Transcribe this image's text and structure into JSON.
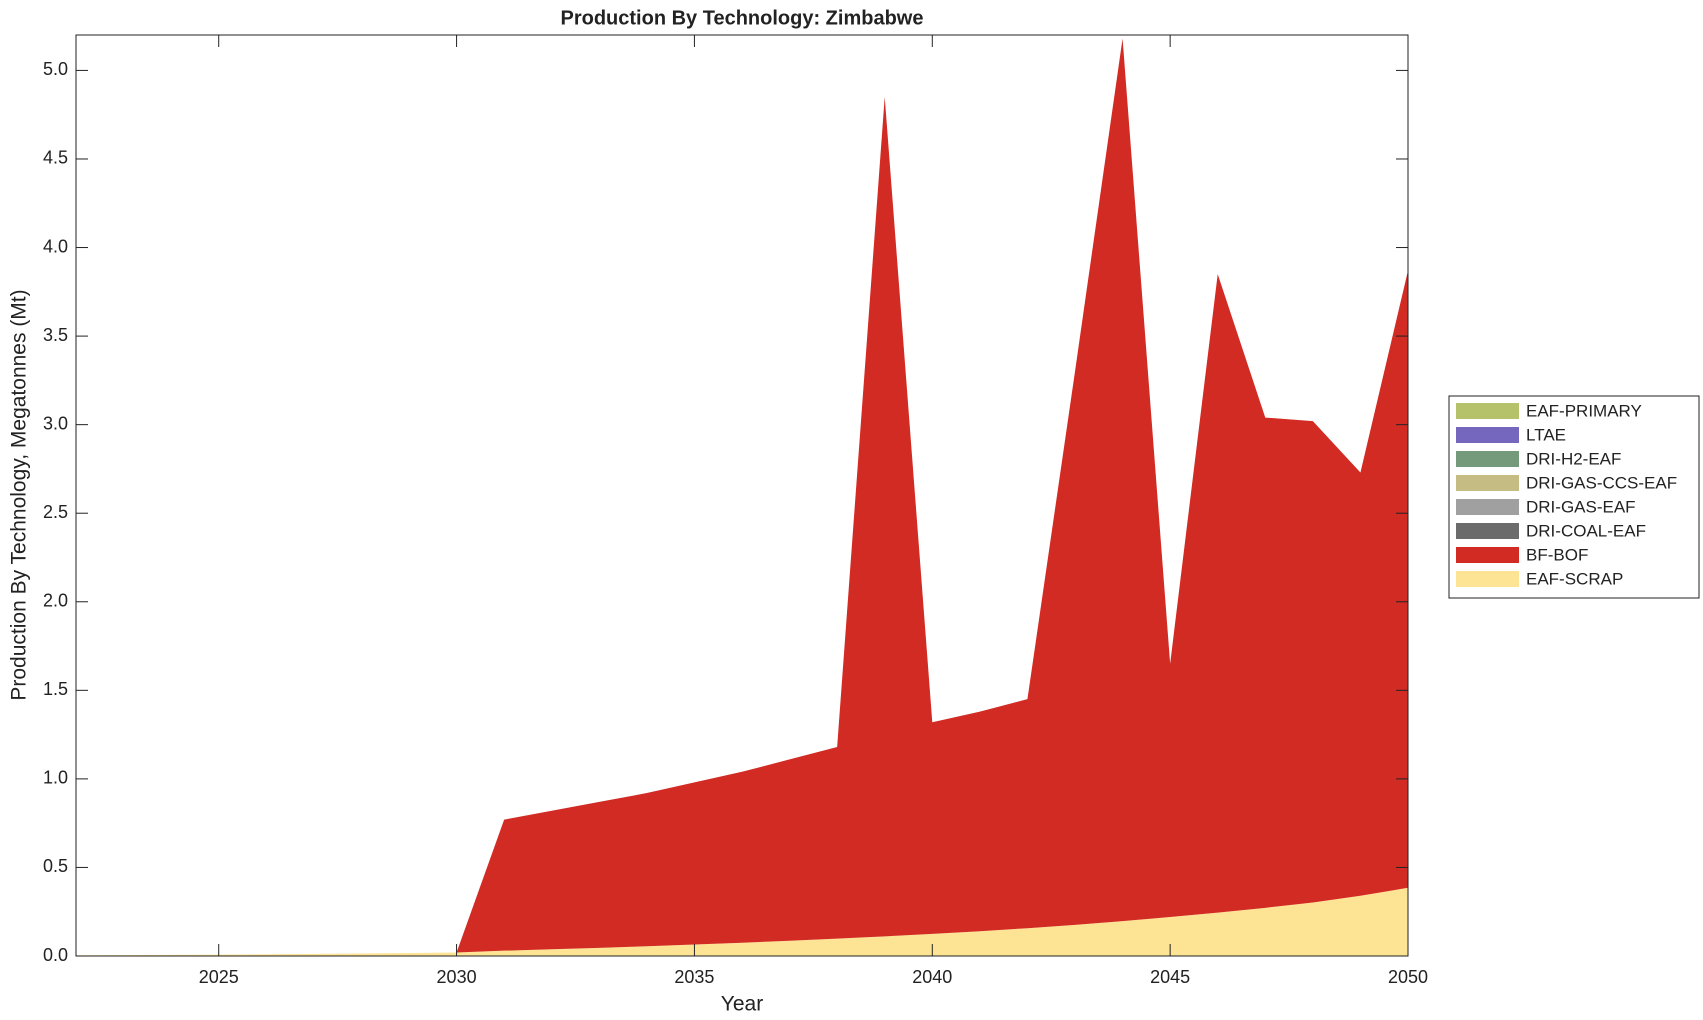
{
  "chart_data": {
    "type": "stacked-area",
    "title": "Production By Technology: Zimbabwe",
    "xlabel": "Year",
    "ylabel": "Production By Technology, Megatonnes (Mt)",
    "x": [
      2022,
      2023,
      2024,
      2025,
      2026,
      2027,
      2028,
      2029,
      2030,
      2031,
      2032,
      2033,
      2034,
      2035,
      2036,
      2037,
      2038,
      2039,
      2040,
      2041,
      2042,
      2043,
      2044,
      2045,
      2046,
      2047,
      2048,
      2049,
      2050
    ],
    "xlim": [
      2022,
      2050
    ],
    "xticks": [
      2025,
      2030,
      2035,
      2040,
      2045,
      2050
    ],
    "ylim": [
      0,
      5.2
    ],
    "yticks": [
      {
        "value": 0,
        "label": "0.0"
      },
      0.5,
      {
        "value": 1,
        "label": "1.0"
      },
      1.5,
      {
        "value": 2,
        "label": "2.0"
      },
      2.5,
      {
        "value": 3,
        "label": "3.0"
      },
      3.5,
      {
        "value": 4,
        "label": "4.0"
      },
      4.5,
      {
        "value": 5,
        "label": "5.0"
      }
    ],
    "series": [
      {
        "name": "EAF-SCRAP",
        "color": "#fde394",
        "values": [
          0.004,
          0.005,
          0.006,
          0.008,
          0.01,
          0.012,
          0.014,
          0.017,
          0.02,
          0.03,
          0.038,
          0.046,
          0.055,
          0.065,
          0.075,
          0.086,
          0.098,
          0.111,
          0.125,
          0.14,
          0.157,
          0.176,
          0.197,
          0.22,
          0.245,
          0.272,
          0.302,
          0.34,
          0.385
        ]
      },
      {
        "name": "BF-BOF",
        "color": "#d22b24",
        "values": [
          0,
          0,
          0,
          0,
          0,
          0,
          0,
          0,
          0,
          0.74,
          0.782,
          0.824,
          0.865,
          0.915,
          0.965,
          1.024,
          1.082,
          4.739,
          1.195,
          1.24,
          1.293,
          3.124,
          4.983,
          1.43,
          3.605,
          2.768,
          2.718,
          2.39,
          3.485
        ]
      },
      {
        "name": "DRI-COAL-EAF",
        "color": "#6b6b6b",
        "values": [
          0,
          0,
          0,
          0,
          0,
          0,
          0,
          0,
          0,
          0,
          0,
          0,
          0,
          0,
          0,
          0,
          0,
          0,
          0,
          0,
          0,
          0,
          0,
          0,
          0,
          0,
          0,
          0,
          0
        ]
      },
      {
        "name": "DRI-GAS-EAF",
        "color": "#a0a0a0",
        "values": [
          0,
          0,
          0,
          0,
          0,
          0,
          0,
          0,
          0,
          0,
          0,
          0,
          0,
          0,
          0,
          0,
          0,
          0,
          0,
          0,
          0,
          0,
          0,
          0,
          0,
          0,
          0,
          0,
          0
        ]
      },
      {
        "name": "DRI-GAS-CCS-EAF",
        "color": "#c4bc82",
        "values": [
          0,
          0,
          0,
          0,
          0,
          0,
          0,
          0,
          0,
          0,
          0,
          0,
          0,
          0,
          0,
          0,
          0,
          0,
          0,
          0,
          0,
          0,
          0,
          0,
          0,
          0,
          0,
          0,
          0
        ]
      },
      {
        "name": "DRI-H2-EAF",
        "color": "#749a7b",
        "values": [
          0,
          0,
          0,
          0,
          0,
          0,
          0,
          0,
          0,
          0,
          0,
          0,
          0,
          0,
          0,
          0,
          0,
          0,
          0,
          0,
          0,
          0,
          0,
          0,
          0,
          0,
          0,
          0,
          0
        ]
      },
      {
        "name": "LTAE",
        "color": "#7467bd",
        "values": [
          0,
          0,
          0,
          0,
          0,
          0,
          0,
          0,
          0,
          0,
          0,
          0,
          0,
          0,
          0,
          0,
          0,
          0,
          0,
          0,
          0,
          0,
          0,
          0,
          0,
          0,
          0,
          0,
          0
        ]
      },
      {
        "name": "EAF-PRIMARY",
        "color": "#b5c26a",
        "values": [
          0,
          0,
          0,
          0,
          0,
          0,
          0,
          0,
          0,
          0,
          0,
          0,
          0,
          0,
          0,
          0,
          0,
          0,
          0,
          0,
          0,
          0,
          0,
          0,
          0,
          0,
          0,
          0,
          0
        ]
      }
    ]
  }
}
